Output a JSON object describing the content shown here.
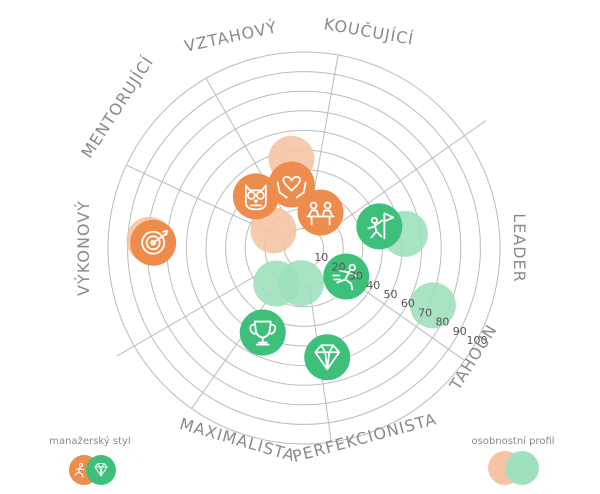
{
  "colors": {
    "orange": "#ee8c4e",
    "green": "#3ec07a",
    "orange_light": "#f5c4a4",
    "green_light": "#9fe0bd",
    "grid": "#bbbbbb",
    "label": "#8a8a8a"
  },
  "chart_data": {
    "type": "radar-bubble",
    "axis_ticks": [
      "10",
      "20",
      "30",
      "40",
      "50",
      "60",
      "70",
      "80",
      "90",
      "100"
    ],
    "axis_max": 100,
    "sectors": [
      "LEADER",
      "TAHOUN",
      "PERFEKCIONISTA",
      "MAXIMALISTA",
      "VÝKONOVÝ",
      "MENTORUJÍCÍ",
      "VZTAHOVÝ",
      "KOUČUJÍCÍ"
    ],
    "manazersky_styl": [
      {
        "icon": "target-icon",
        "sector_angle_deg": 178,
        "value": 77
      },
      {
        "icon": "owl-icon",
        "sector_angle_deg": 133,
        "value": 36
      },
      {
        "icon": "hands-heart-icon",
        "sector_angle_deg": 101,
        "value": 33
      },
      {
        "icon": "meeting-icon",
        "sector_angle_deg": 65,
        "value": 20
      },
      {
        "icon": "climber-flag-icon",
        "sector_angle_deg": 16,
        "value": 40
      },
      {
        "icon": "runner-icon",
        "sector_angle_deg": -34,
        "value": 26
      },
      {
        "icon": "trophy-icon",
        "sector_angle_deg": -116,
        "value": 48
      },
      {
        "icon": "diamond-icon",
        "sector_angle_deg": -78,
        "value": 57
      }
    ],
    "osobnostni_profil": [
      {
        "color": "orange",
        "sector_angle_deg": 98,
        "value": 46
      },
      {
        "color": "orange",
        "sector_angle_deg": 150,
        "value": 18
      },
      {
        "color": "orange",
        "sector_angle_deg": 177,
        "value": 79
      },
      {
        "color": "green",
        "sector_angle_deg": 8,
        "value": 52
      },
      {
        "color": "green",
        "sector_angle_deg": -24,
        "value": 72
      },
      {
        "color": "green",
        "sector_angle_deg": -128,
        "value": 23
      },
      {
        "color": "green",
        "sector_angle_deg": -95,
        "value": 18
      }
    ]
  },
  "legend": {
    "manazersky_styl": "manažerský styl",
    "osobnostni_profil": "osobnostní profil"
  }
}
